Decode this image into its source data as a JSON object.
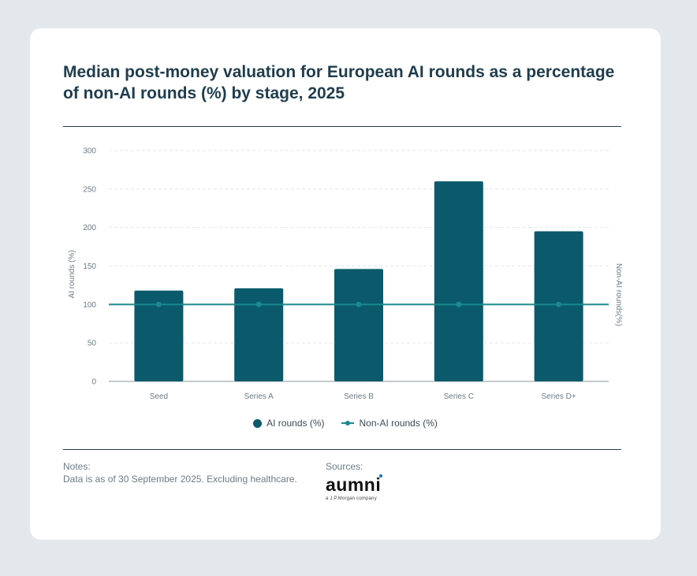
{
  "title": "Median post-money valuation for European AI rounds as a percentage of non-AI rounds (%) by stage, 2025",
  "chart_data": {
    "type": "bar",
    "categories": [
      "Seed",
      "Series A",
      "Series B",
      "Series C",
      "Series D+"
    ],
    "series": [
      {
        "name": "AI rounds (%)",
        "type": "bar",
        "values": [
          118,
          121,
          146,
          260,
          195
        ],
        "color": "#0a5a6b"
      },
      {
        "name": "Non-AI rounds (%)",
        "type": "line",
        "values": [
          100,
          100,
          100,
          100,
          100
        ],
        "color": "#1a8a8c"
      }
    ],
    "ylabel": "AI rounds (%)",
    "ylabel_right": "Non-AI rounds(%)",
    "ylim": [
      0,
      300
    ],
    "yticks": [
      "0",
      "50",
      "100",
      "150",
      "200",
      "250",
      "300"
    ],
    "legend_position": "bottom-center",
    "grid": true
  },
  "legend": {
    "ai": "AI rounds (%)",
    "nonai": "Non-AI rounds (%)"
  },
  "footer": {
    "notes_label": "Notes:",
    "notes_text": "Data is as of 30 September 2025. Excluding healthcare.",
    "sources_label": "Sources:",
    "logo_text": "aumni",
    "logo_sub": "a J.P.Morgan company"
  }
}
